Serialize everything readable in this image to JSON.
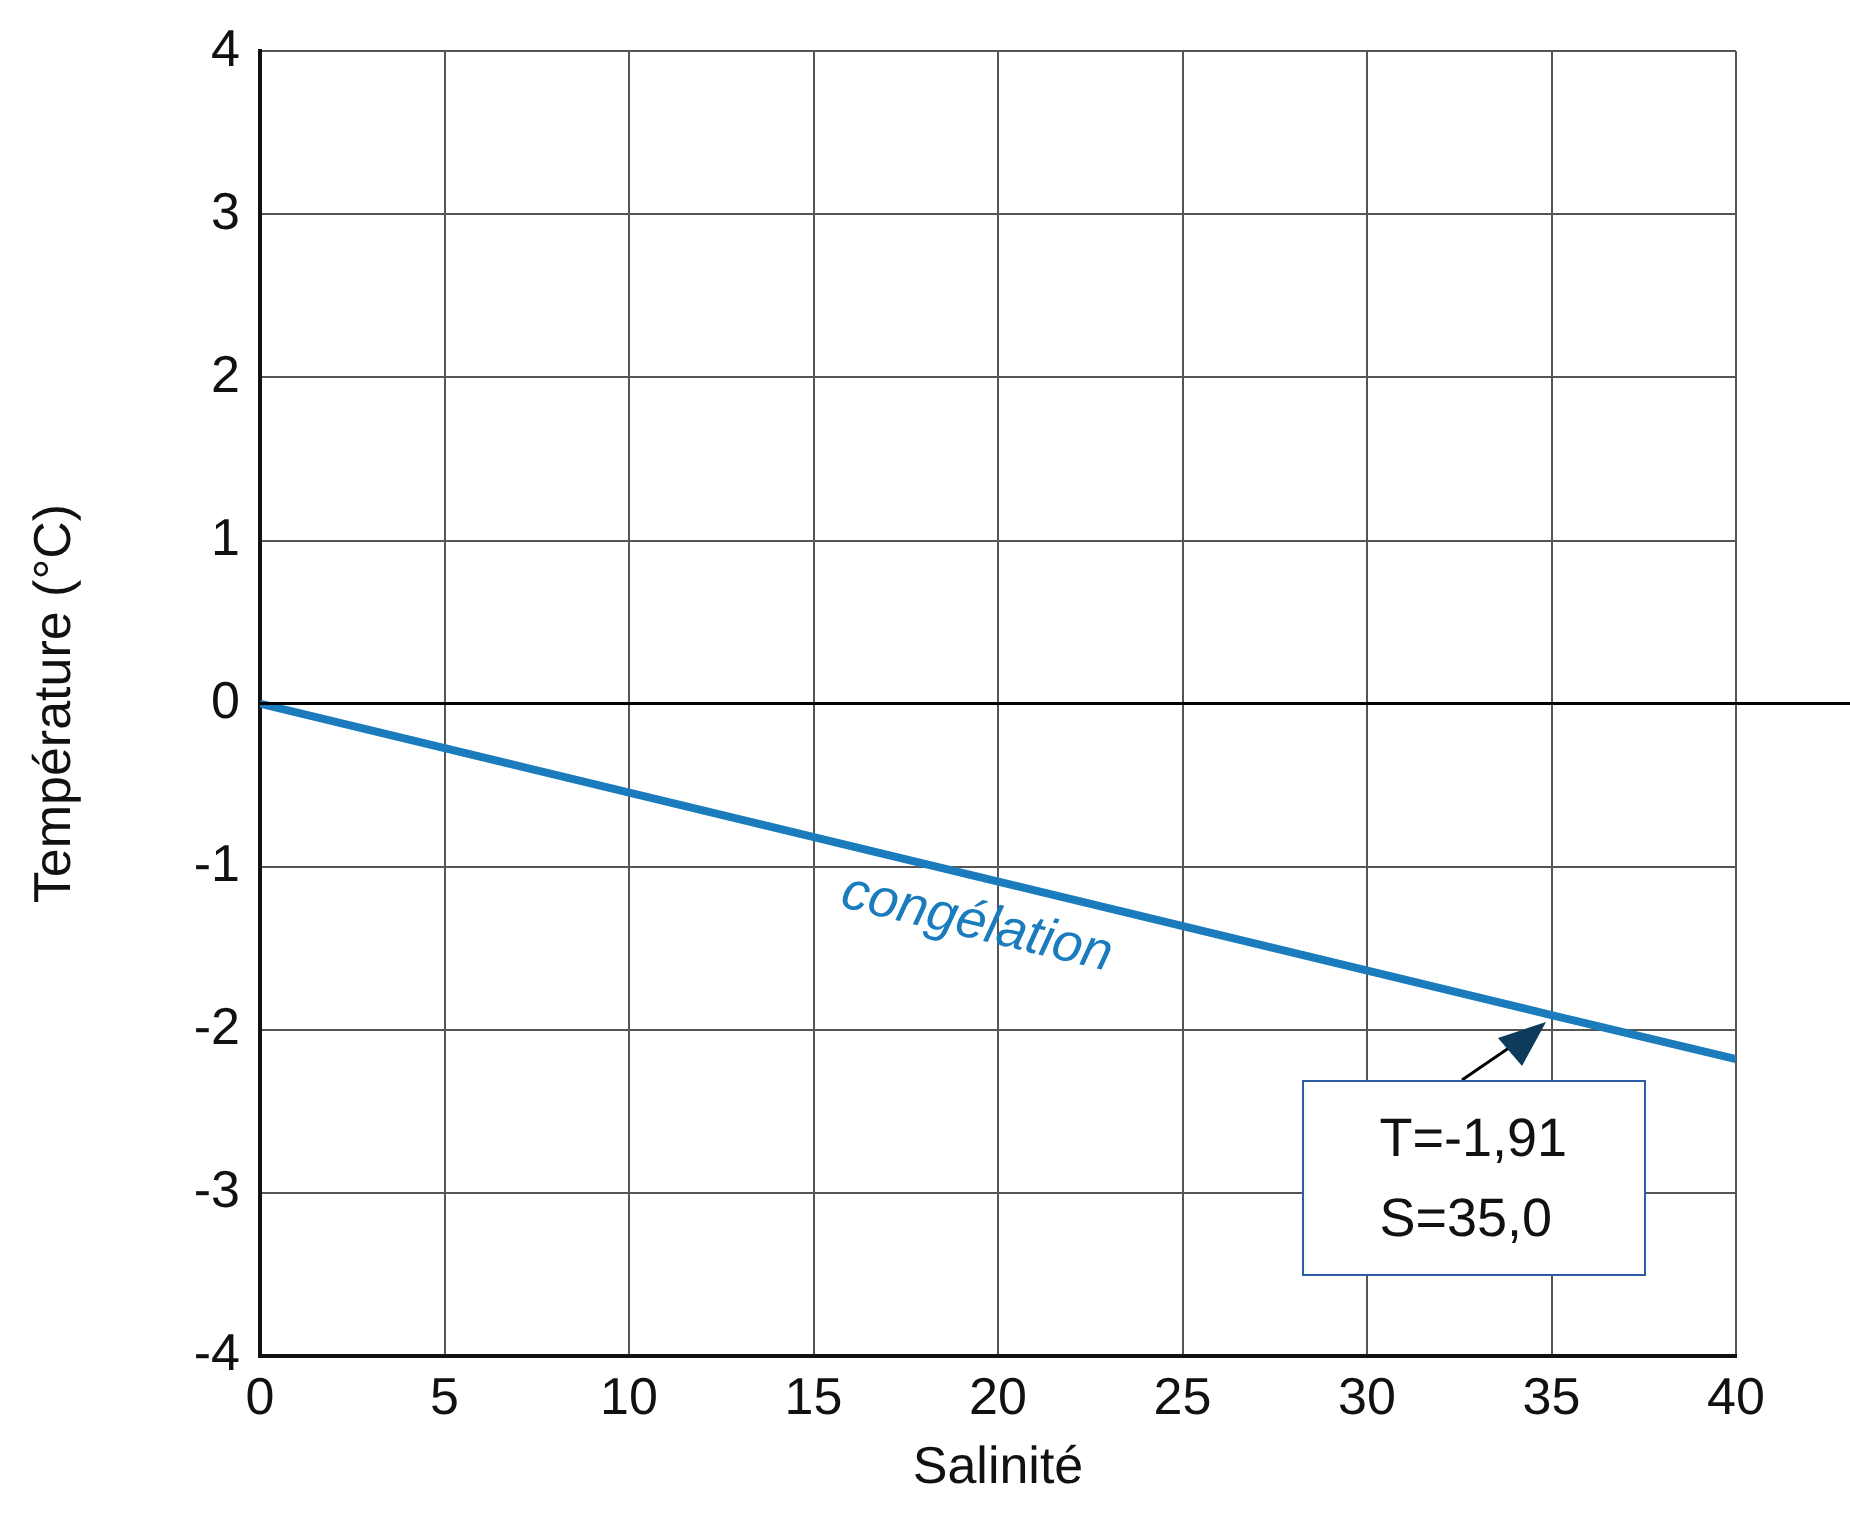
{
  "chart_data": {
    "type": "line",
    "xlabel": "Salinité",
    "ylabel": "Température (°C)",
    "x": [
      0,
      35,
      40
    ],
    "series": [
      {
        "name": "congélation",
        "color": "#1a7bbd",
        "values": [
          0,
          -1.91,
          -2.18
        ]
      }
    ],
    "xlim": [
      0,
      40
    ],
    "xticks": [
      0,
      5,
      10,
      15,
      20,
      25,
      30,
      35,
      40
    ],
    "ylim": [
      -4,
      4
    ],
    "yticks": [
      -4,
      -3,
      -2,
      -1,
      0,
      1,
      2,
      3,
      4
    ],
    "grid": true,
    "legend": false,
    "marker": "none",
    "line_style": "solid",
    "ref_lines": [
      {
        "axis": "y",
        "value": 0,
        "color": "#000000"
      }
    ],
    "annotations": [
      {
        "text": "T=-1,91\nS=35,0",
        "x": 35,
        "y": -1.91
      }
    ]
  }
}
